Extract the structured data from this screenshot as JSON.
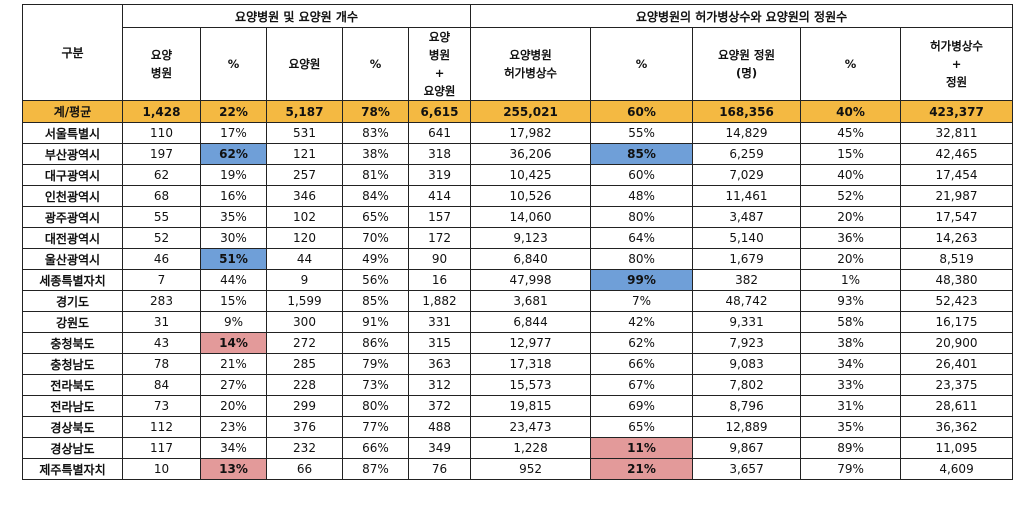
{
  "table": {
    "group_headers": {
      "category": "구분",
      "facilities": "요양병원 및 요양원 개수",
      "beds": "요양병원의 허가병상수와 요양원의 정원수"
    },
    "columns": [
      "요양\n병원",
      "%",
      "요양원",
      "%",
      "요양\n병원\n+\n요양원",
      "요양병원\n허가병상수",
      "%",
      "요양원 정원\n(명)",
      "%",
      "허가병상수\n+\n정원"
    ],
    "total_row": {
      "region": "계/평균",
      "values": [
        "1,428",
        "22%",
        "5,187",
        "78%",
        "6,615",
        "255,021",
        "60%",
        "168,356",
        "40%",
        "423,377"
      ]
    },
    "rows": [
      {
        "region": "서울특별시",
        "values": [
          "110",
          "17%",
          "531",
          "83%",
          "641",
          "17,982",
          "55%",
          "14,829",
          "45%",
          "32,811"
        ],
        "highlight": {}
      },
      {
        "region": "부산광역시",
        "values": [
          "197",
          "62%",
          "121",
          "38%",
          "318",
          "36,206",
          "85%",
          "6,259",
          "15%",
          "42,465"
        ],
        "highlight": {
          "1": "blue",
          "6": "blue"
        }
      },
      {
        "region": "대구광역시",
        "values": [
          "62",
          "19%",
          "257",
          "81%",
          "319",
          "10,425",
          "60%",
          "7,029",
          "40%",
          "17,454"
        ],
        "highlight": {}
      },
      {
        "region": "인천광역시",
        "values": [
          "68",
          "16%",
          "346",
          "84%",
          "414",
          "10,526",
          "48%",
          "11,461",
          "52%",
          "21,987"
        ],
        "highlight": {}
      },
      {
        "region": "광주광역시",
        "values": [
          "55",
          "35%",
          "102",
          "65%",
          "157",
          "14,060",
          "80%",
          "3,487",
          "20%",
          "17,547"
        ],
        "highlight": {}
      },
      {
        "region": "대전광역시",
        "values": [
          "52",
          "30%",
          "120",
          "70%",
          "172",
          "9,123",
          "64%",
          "5,140",
          "36%",
          "14,263"
        ],
        "highlight": {}
      },
      {
        "region": "울산광역시",
        "values": [
          "46",
          "51%",
          "44",
          "49%",
          "90",
          "6,840",
          "80%",
          "1,679",
          "20%",
          "8,519"
        ],
        "highlight": {
          "1": "blue"
        }
      },
      {
        "region": "세종특별자치",
        "values": [
          "7",
          "44%",
          "9",
          "56%",
          "16",
          "47,998",
          "99%",
          "382",
          "1%",
          "48,380"
        ],
        "highlight": {
          "6": "blue"
        }
      },
      {
        "region": "경기도",
        "values": [
          "283",
          "15%",
          "1,599",
          "85%",
          "1,882",
          "3,681",
          "7%",
          "48,742",
          "93%",
          "52,423"
        ],
        "highlight": {}
      },
      {
        "region": "강원도",
        "values": [
          "31",
          "9%",
          "300",
          "91%",
          "331",
          "6,844",
          "42%",
          "9,331",
          "58%",
          "16,175"
        ],
        "highlight": {}
      },
      {
        "region": "충청북도",
        "values": [
          "43",
          "14%",
          "272",
          "86%",
          "315",
          "12,977",
          "62%",
          "7,923",
          "38%",
          "20,900"
        ],
        "highlight": {
          "1": "red"
        }
      },
      {
        "region": "충청남도",
        "values": [
          "78",
          "21%",
          "285",
          "79%",
          "363",
          "17,318",
          "66%",
          "9,083",
          "34%",
          "26,401"
        ],
        "highlight": {}
      },
      {
        "region": "전라북도",
        "values": [
          "84",
          "27%",
          "228",
          "73%",
          "312",
          "15,573",
          "67%",
          "7,802",
          "33%",
          "23,375"
        ],
        "highlight": {}
      },
      {
        "region": "전라남도",
        "values": [
          "73",
          "20%",
          "299",
          "80%",
          "372",
          "19,815",
          "69%",
          "8,796",
          "31%",
          "28,611"
        ],
        "highlight": {}
      },
      {
        "region": "경상북도",
        "values": [
          "112",
          "23%",
          "376",
          "77%",
          "488",
          "23,473",
          "65%",
          "12,889",
          "35%",
          "36,362"
        ],
        "highlight": {}
      },
      {
        "region": "경상남도",
        "values": [
          "117",
          "34%",
          "232",
          "66%",
          "349",
          "1,228",
          "11%",
          "9,867",
          "89%",
          "11,095"
        ],
        "highlight": {
          "6": "red"
        }
      },
      {
        "region": "제주특별자치",
        "values": [
          "10",
          "13%",
          "66",
          "87%",
          "76",
          "952",
          "21%",
          "3,657",
          "79%",
          "4,609"
        ],
        "highlight": {
          "1": "red",
          "6": "red"
        }
      }
    ],
    "colors": {
      "total_row": "#f4b942",
      "highlight_blue": "#6f9fd8",
      "highlight_red": "#e39a9a"
    }
  }
}
